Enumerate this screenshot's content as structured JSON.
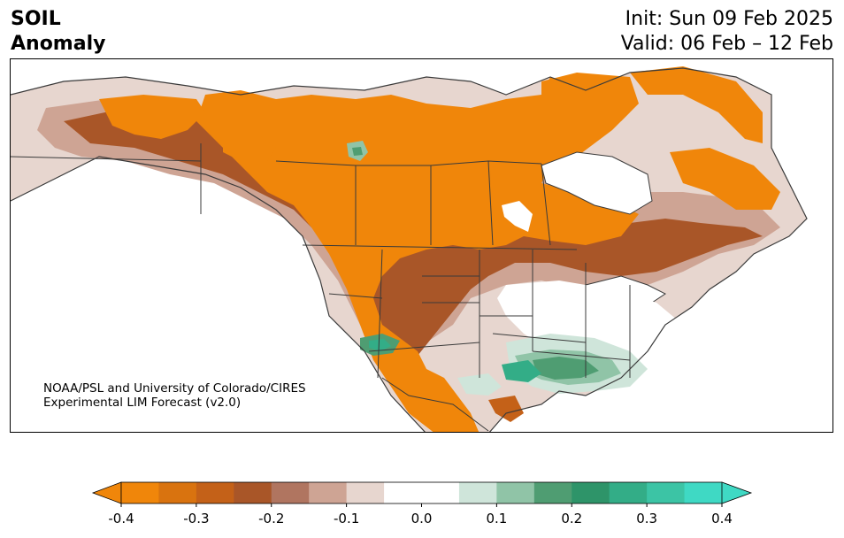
{
  "header": {
    "title_line1": "SOIL",
    "title_line2": "Anomaly",
    "init_label": "Init: Sun 09 Feb 2025",
    "valid_label": "Valid: 06 Feb – 12 Feb"
  },
  "credit": {
    "line1": "NOAA/PSL and University of Colorado/CIRES",
    "line2": "Experimental LIM Forecast (v2.0)"
  },
  "colorbar": {
    "ticks": [
      "-0.4",
      "-0.3",
      "-0.2",
      "-0.1",
      "0.0",
      "0.1",
      "0.2",
      "0.3",
      "0.4"
    ],
    "colors": [
      "#f0860a",
      "#d9730f",
      "#c46118",
      "#a95628",
      "#b07560",
      "#cea494",
      "#e7d6cf",
      "#ffffff",
      "#ffffff",
      "#cfe5da",
      "#90c4a7",
      "#4f9d72",
      "#2e9469",
      "#33ad87",
      "#3cc4a5",
      "#3fd9c4"
    ],
    "extend_low": "#f0860a",
    "extend_high": "#3fd9c4"
  },
  "map": {
    "region": "North America",
    "palette": {
      "dry_strong": "#f0860a",
      "dry_mid": "#c46118",
      "dry_dark": "#a95628",
      "dry_light": "#cea494",
      "dry_faint": "#e7d6cf",
      "wet_faint": "#cfe5da",
      "wet_light": "#90c4a7",
      "wet_mid": "#4f9d72",
      "wet_strong": "#33ad87",
      "border": "#3a3a3a"
    }
  }
}
